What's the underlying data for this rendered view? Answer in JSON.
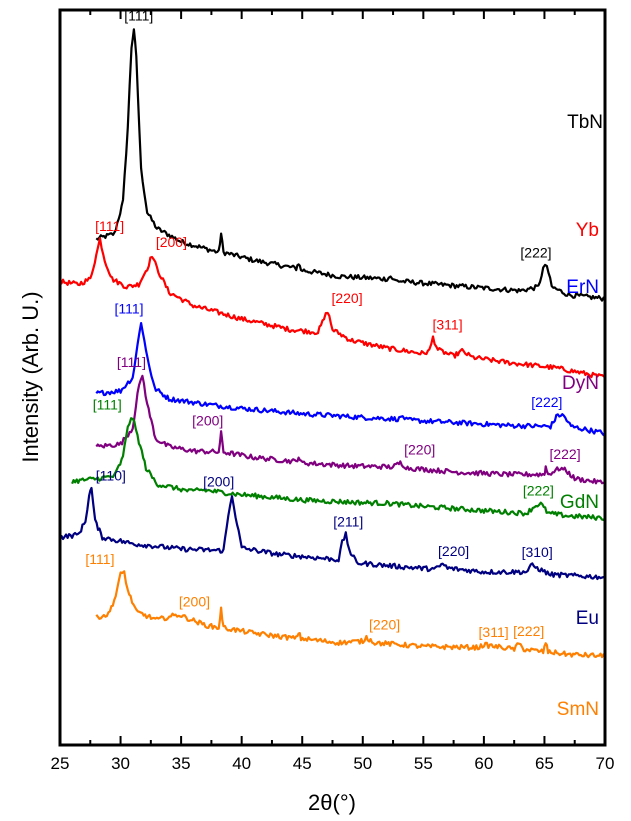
{
  "chart_data": {
    "type": "line",
    "title": "",
    "xlabel": "2θ(°)",
    "ylabel": "Intensity (Arb. U.)",
    "xlim": [
      25,
      70
    ],
    "xticks": [
      "25",
      "30",
      "35",
      "40",
      "45",
      "50",
      "55",
      "60",
      "65",
      "70"
    ],
    "grid": false,
    "legend": "none",
    "series": [
      {
        "name": "TbN",
        "color": "#000000",
        "points": [
          [
            28,
            0.59
          ],
          [
            29.5,
            0.6
          ],
          [
            30.2,
            0.66
          ],
          [
            30.6,
            0.8
          ],
          [
            30.9,
            0.95
          ],
          [
            31.1,
            0.985
          ],
          [
            31.3,
            0.93
          ],
          [
            31.7,
            0.72
          ],
          [
            32.2,
            0.64
          ],
          [
            33,
            0.61
          ],
          [
            35,
            0.585
          ],
          [
            38.1,
            0.565
          ],
          [
            38.3,
            0.6
          ],
          [
            38.5,
            0.565
          ],
          [
            41,
            0.55
          ],
          [
            44.5,
            0.535
          ],
          [
            44.7,
            0.545
          ],
          [
            44.9,
            0.532
          ],
          [
            48,
            0.52
          ],
          [
            52,
            0.515
          ],
          [
            52.3,
            0.52
          ],
          [
            52.6,
            0.512
          ],
          [
            56,
            0.505
          ],
          [
            60,
            0.498
          ],
          [
            63,
            0.493
          ],
          [
            64.5,
            0.5
          ],
          [
            64.9,
            0.535
          ],
          [
            65.2,
            0.54
          ],
          [
            65.6,
            0.5
          ],
          [
            67,
            0.485
          ],
          [
            70,
            0.478
          ]
        ],
        "peaks": [
          {
            "label": "[111]",
            "x": 31.5,
            "y": 0.985
          },
          {
            "label": "[222]",
            "x": 64.3,
            "y": 0.54
          }
        ]
      },
      {
        "name": "Yb",
        "color": "#ff0000",
        "points": [
          [
            25,
            0.51
          ],
          [
            26.5,
            0.505
          ],
          [
            27.5,
            0.515
          ],
          [
            28,
            0.56
          ],
          [
            28.3,
            0.59
          ],
          [
            28.7,
            0.55
          ],
          [
            29.3,
            0.515
          ],
          [
            30.5,
            0.5
          ],
          [
            31.5,
            0.505
          ],
          [
            32.2,
            0.535
          ],
          [
            32.6,
            0.56
          ],
          [
            33,
            0.535
          ],
          [
            34,
            0.49
          ],
          [
            36,
            0.465
          ],
          [
            40,
            0.44
          ],
          [
            44,
            0.42
          ],
          [
            46.3,
            0.415
          ],
          [
            46.8,
            0.44
          ],
          [
            47.1,
            0.455
          ],
          [
            47.5,
            0.42
          ],
          [
            49,
            0.4
          ],
          [
            52,
            0.385
          ],
          [
            55,
            0.375
          ],
          [
            55.5,
            0.38
          ],
          [
            55.8,
            0.405
          ],
          [
            56.2,
            0.382
          ],
          [
            57.5,
            0.37
          ],
          [
            58.2,
            0.38
          ],
          [
            59,
            0.368
          ],
          [
            62,
            0.358
          ],
          [
            66,
            0.348
          ],
          [
            70,
            0.33
          ]
        ],
        "peaks": [
          {
            "label": "[111]",
            "x": 29.1,
            "y": 0.59
          },
          {
            "label": "[200]",
            "x": 34.2,
            "y": 0.56
          },
          {
            "label": "[220]",
            "x": 48.7,
            "y": 0.455
          },
          {
            "label": "[311]",
            "x": 57,
            "y": 0.405
          }
        ]
      },
      {
        "name": "ErN",
        "color": "#0000ff",
        "points": [
          [
            28,
            0.3
          ],
          [
            30,
            0.305
          ],
          [
            31,
            0.33
          ],
          [
            31.4,
            0.39
          ],
          [
            31.7,
            0.435
          ],
          [
            32.1,
            0.38
          ],
          [
            32.8,
            0.31
          ],
          [
            34,
            0.29
          ],
          [
            37,
            0.28
          ],
          [
            40,
            0.272
          ],
          [
            45,
            0.262
          ],
          [
            50,
            0.255
          ],
          [
            53,
            0.252
          ],
          [
            53.3,
            0.258
          ],
          [
            53.6,
            0.25
          ],
          [
            58,
            0.245
          ],
          [
            62,
            0.24
          ],
          [
            65.5,
            0.238
          ],
          [
            66.1,
            0.26
          ],
          [
            66.6,
            0.258
          ],
          [
            67.2,
            0.238
          ],
          [
            70,
            0.225
          ]
        ],
        "peaks": [
          {
            "label": "[111]",
            "x": 30.7,
            "y": 0.435
          },
          {
            "label": "[222]",
            "x": 65.2,
            "y": 0.26
          }
        ]
      },
      {
        "name": "DyN",
        "color": "#800080",
        "points": [
          [
            28,
            0.2
          ],
          [
            30,
            0.205
          ],
          [
            31,
            0.235
          ],
          [
            31.4,
            0.3
          ],
          [
            31.8,
            0.335
          ],
          [
            32.2,
            0.28
          ],
          [
            32.9,
            0.215
          ],
          [
            34,
            0.2
          ],
          [
            36,
            0.192
          ],
          [
            38.1,
            0.19
          ],
          [
            38.3,
            0.225
          ],
          [
            38.5,
            0.19
          ],
          [
            41,
            0.18
          ],
          [
            44.5,
            0.172
          ],
          [
            44.7,
            0.182
          ],
          [
            44.9,
            0.17
          ],
          [
            49,
            0.164
          ],
          [
            52.5,
            0.162
          ],
          [
            53.1,
            0.17
          ],
          [
            53.7,
            0.16
          ],
          [
            58,
            0.152
          ],
          [
            62,
            0.148
          ],
          [
            65,
            0.148
          ],
          [
            65.1,
            0.162
          ],
          [
            65.3,
            0.148
          ],
          [
            66.3,
            0.16
          ],
          [
            66.8,
            0.155
          ],
          [
            67.5,
            0.14
          ],
          [
            70,
            0.132
          ]
        ],
        "peaks": [
          {
            "label": "[111]",
            "x": 30.9,
            "y": 0.335
          },
          {
            "label": "[200]",
            "x": 37.2,
            "y": 0.225
          },
          {
            "label": "[220]",
            "x": 54.7,
            "y": 0.17
          },
          {
            "label": "[222]",
            "x": 66.7,
            "y": 0.162
          }
        ]
      },
      {
        "name": "GdN",
        "color": "#008000",
        "points": [
          [
            26,
            0.135
          ],
          [
            28,
            0.14
          ],
          [
            29.5,
            0.145
          ],
          [
            30.2,
            0.18
          ],
          [
            30.6,
            0.24
          ],
          [
            31,
            0.255
          ],
          [
            31.4,
            0.22
          ],
          [
            32.1,
            0.16
          ],
          [
            33,
            0.13
          ],
          [
            36,
            0.115
          ],
          [
            36.3,
            0.12
          ],
          [
            40,
            0.11
          ],
          [
            45,
            0.1
          ],
          [
            50,
            0.095
          ],
          [
            52,
            0.094
          ],
          [
            55,
            0.088
          ],
          [
            60,
            0.08
          ],
          [
            63.5,
            0.075
          ],
          [
            64.3,
            0.09
          ],
          [
            64.7,
            0.093
          ],
          [
            65.3,
            0.075
          ],
          [
            67,
            0.07
          ],
          [
            70,
            0.066
          ]
        ],
        "peaks": [
          {
            "label": "[111]",
            "x": 28.9,
            "y": 0.255
          },
          {
            "label": "[222]",
            "x": 64.5,
            "y": 0.093
          }
        ]
      },
      {
        "name": "Eu",
        "color": "#000080",
        "points": [
          [
            25,
            0.03
          ],
          [
            26.5,
            0.035
          ],
          [
            27.1,
            0.06
          ],
          [
            27.4,
            0.11
          ],
          [
            27.6,
            0.122
          ],
          [
            27.9,
            0.06
          ],
          [
            28.5,
            0.03
          ],
          [
            31,
            0.018
          ],
          [
            35,
            0.008
          ],
          [
            38.5,
            0.005
          ],
          [
            38.9,
            0.07
          ],
          [
            39.2,
            0.11
          ],
          [
            39.5,
            0.07
          ],
          [
            40,
            0.01
          ],
          [
            43,
            -0.002
          ],
          [
            48,
            -0.012
          ],
          [
            48.3,
            0.02
          ],
          [
            48.6,
            0.035
          ],
          [
            48.9,
            0.005
          ],
          [
            49.5,
            -0.018
          ],
          [
            53,
            -0.025
          ],
          [
            56,
            -0.03
          ],
          [
            56.6,
            -0.02
          ],
          [
            57,
            -0.028
          ],
          [
            60,
            -0.035
          ],
          [
            63.5,
            -0.035
          ],
          [
            64,
            -0.022
          ],
          [
            64.4,
            -0.028
          ],
          [
            65.5,
            -0.04
          ],
          [
            70,
            -0.045
          ]
        ],
        "peaks": [
          {
            "label": "[110]",
            "x": 29.2,
            "y": 0.122
          },
          {
            "label": "[200]",
            "x": 38.1,
            "y": 0.11
          },
          {
            "label": "[211]",
            "x": 48.8,
            "y": 0.035
          },
          {
            "label": "[220]",
            "x": 57.5,
            "y": -0.02
          },
          {
            "label": "[310]",
            "x": 64.4,
            "y": -0.022
          }
        ]
      },
      {
        "name": "SmN",
        "color": "#ff8000",
        "points": [
          [
            28,
            -0.12
          ],
          [
            29,
            -0.115
          ],
          [
            29.6,
            -0.08
          ],
          [
            30,
            -0.04
          ],
          [
            30.3,
            -0.035
          ],
          [
            30.6,
            -0.07
          ],
          [
            31.3,
            -0.11
          ],
          [
            33,
            -0.125
          ],
          [
            34.8,
            -0.115
          ],
          [
            35.3,
            -0.12
          ],
          [
            37,
            -0.135
          ],
          [
            38.1,
            -0.14
          ],
          [
            38.3,
            -0.105
          ],
          [
            38.5,
            -0.14
          ],
          [
            41,
            -0.15
          ],
          [
            44.5,
            -0.16
          ],
          [
            44.7,
            -0.148
          ],
          [
            44.9,
            -0.16
          ],
          [
            48,
            -0.168
          ],
          [
            50,
            -0.165
          ],
          [
            50.3,
            -0.158
          ],
          [
            51,
            -0.168
          ],
          [
            55,
            -0.175
          ],
          [
            59.5,
            -0.177
          ],
          [
            60,
            -0.172
          ],
          [
            62.5,
            -0.18
          ],
          [
            62.9,
            -0.17
          ],
          [
            63.3,
            -0.18
          ],
          [
            64.9,
            -0.185
          ],
          [
            65.1,
            -0.168
          ],
          [
            65.3,
            -0.185
          ],
          [
            67,
            -0.19
          ],
          [
            70,
            -0.193
          ]
        ],
        "peaks": [
          {
            "label": "[111]",
            "x": 28.3,
            "y": -0.035
          },
          {
            "label": "[200]",
            "x": 36.1,
            "y": -0.115
          },
          {
            "label": "[220]",
            "x": 51.8,
            "y": -0.158
          },
          {
            "label": "[311]",
            "x": 60.8,
            "y": -0.172
          },
          {
            "label": "[222]",
            "x": 63.7,
            "y": -0.17
          }
        ]
      }
    ]
  }
}
